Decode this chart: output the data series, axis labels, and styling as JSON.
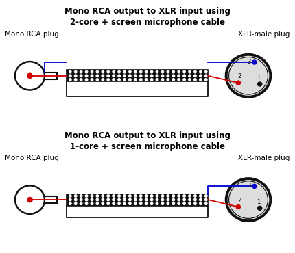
{
  "title1_line1": "Mono RCA output to XLR input using",
  "title1_line2": "2-core + screen microphone cable",
  "title2_line1": "Mono RCA output to XLR input using",
  "title2_line2": "1-core + screen microphone cable",
  "label_rca": "Mono RCA plug",
  "label_xlr": "XLR-male plug",
  "bg_color": "#ffffff",
  "cable_color": "#111111",
  "wire_red": "#cc0000",
  "wire_blue": "#0000cc",
  "xlr_circle_fill": "#dddddd",
  "title_fontsize": 8.5,
  "label_fontsize": 7.5
}
